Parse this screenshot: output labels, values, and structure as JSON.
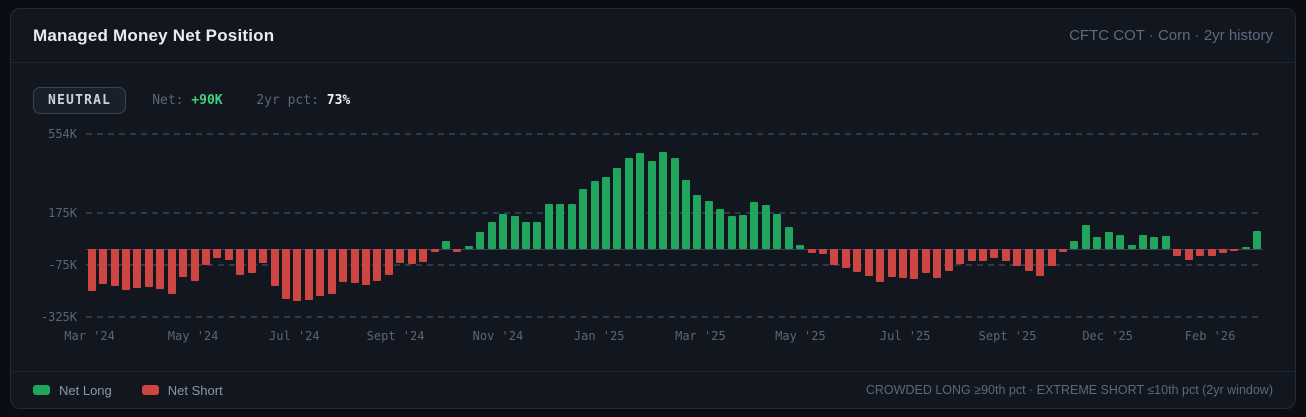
{
  "header": {
    "title": "Managed Money Net Position",
    "context": "CFTC COT · Corn · 2yr history"
  },
  "status": {
    "badge": "NEUTRAL",
    "net_label": "Net:",
    "net_value": "+90K",
    "pct_label": "2yr pct:",
    "pct_value": "73%"
  },
  "chart_data": {
    "type": "bar",
    "title": "Managed Money Net Position",
    "unit": "thousands of contracts (K)",
    "ylim": [
      -325,
      554
    ],
    "y_gridlines": [
      554,
      175,
      -75,
      -325
    ],
    "y_tick_labels": [
      "554K",
      "175K",
      "-75K",
      "-325K"
    ],
    "grid": "dashed horizontal",
    "legend_position": "bottom-left",
    "x_tick_labels": [
      "Mar '24",
      "May '24",
      "Jul '24",
      "Sept '24",
      "Nov '24",
      "Jan '25",
      "Mar '25",
      "May '25",
      "Jul '25",
      "Sept '25",
      "Dec '25",
      "Feb '26"
    ],
    "x_tick_pos_pct": [
      0.3,
      9.1,
      17.7,
      26.3,
      35.0,
      43.6,
      52.2,
      60.7,
      69.6,
      78.3,
      86.8,
      95.5
    ],
    "values_K": [
      -200,
      -165,
      -178,
      -197,
      -186,
      -183,
      -191,
      -213,
      -133,
      -154,
      -74,
      -40,
      -52,
      -125,
      -115,
      -66,
      -174,
      -238,
      -248,
      -244,
      -226,
      -215,
      -155,
      -163,
      -170,
      -151,
      -122,
      -66,
      -71,
      -63,
      -14,
      38,
      -11,
      17,
      82,
      130,
      170,
      159,
      130,
      130,
      220,
      218,
      220,
      292,
      327,
      346,
      391,
      439,
      463,
      423,
      468,
      439,
      335,
      260,
      234,
      194,
      159,
      167,
      228,
      215,
      171,
      109,
      19,
      -18,
      -22,
      -74,
      -90,
      -109,
      -130,
      -157,
      -135,
      -138,
      -141,
      -114,
      -138,
      -106,
      -71,
      -58,
      -55,
      -42,
      -55,
      -82,
      -103,
      -127,
      -82,
      -13,
      40,
      115,
      58,
      85,
      69,
      22,
      71,
      58,
      63,
      -34,
      -51,
      -30,
      -30,
      -18,
      -6,
      13,
      90
    ],
    "colors": {
      "positive": "#21a55c",
      "negative": "#cd4641"
    }
  },
  "legend": [
    {
      "label": "Net Long",
      "color": "#21a55c"
    },
    {
      "label": "Net Short",
      "color": "#cd4641"
    }
  ],
  "footer": {
    "note": "CROWDED LONG ≥90th pct · EXTREME SHORT ≤10th pct (2yr window)"
  }
}
